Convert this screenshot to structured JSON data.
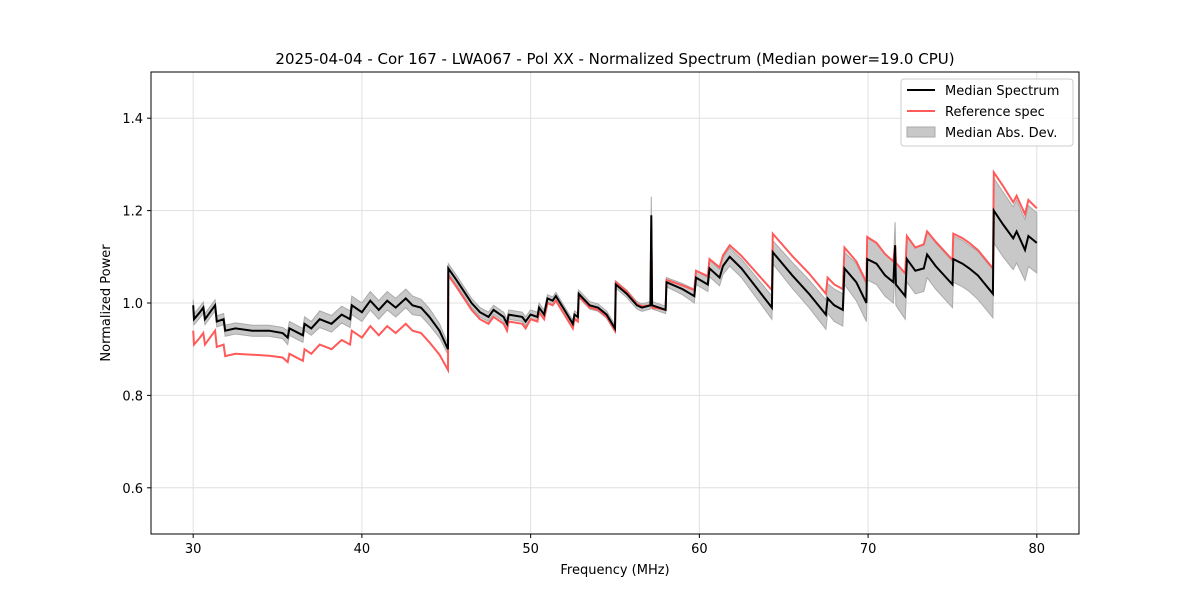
{
  "chart_data": {
    "type": "line",
    "title": "2025-04-04 - Cor 167 - LWA067 - Pol XX - Normalized Spectrum (Median power=19.0 CPU)",
    "xlabel": "Frequency (MHz)",
    "ylabel": "Normalized Power",
    "xlim": [
      27.5,
      82.5
    ],
    "ylim": [
      0.5,
      1.5
    ],
    "xticks": [
      30,
      40,
      50,
      60,
      70,
      80
    ],
    "xtick_labels": [
      "30",
      "40",
      "50",
      "60",
      "70",
      "80"
    ],
    "yticks": [
      0.6,
      0.8,
      1.0,
      1.2,
      1.4
    ],
    "ytick_labels": [
      "0.6",
      "0.8",
      "1.0",
      "1.2",
      "1.4"
    ],
    "grid": true,
    "legend_position": "top-right",
    "legend": [
      {
        "label": "Median Spectrum",
        "kind": "line",
        "color": "#000000"
      },
      {
        "label": "Reference spec",
        "kind": "line",
        "color": "#ff5a5a"
      },
      {
        "label": "Median Abs. Dev.",
        "kind": "band",
        "color": "#c8c8c8"
      }
    ],
    "columns": [
      "frequency_mhz",
      "median",
      "reference",
      "mad"
    ],
    "points": [
      [
        30.0,
        0.995,
        0.94,
        0.012
      ],
      [
        30.05,
        0.965,
        0.91,
        0.012
      ],
      [
        30.4,
        0.98,
        0.925,
        0.012
      ],
      [
        30.6,
        0.99,
        0.935,
        0.012
      ],
      [
        30.7,
        0.965,
        0.91,
        0.012
      ],
      [
        31.1,
        0.985,
        0.93,
        0.012
      ],
      [
        31.3,
        0.995,
        0.94,
        0.012
      ],
      [
        31.4,
        0.96,
        0.905,
        0.012
      ],
      [
        31.8,
        0.965,
        0.91,
        0.012
      ],
      [
        31.9,
        0.94,
        0.885,
        0.012
      ],
      [
        32.5,
        0.945,
        0.89,
        0.012
      ],
      [
        33.5,
        0.94,
        0.888,
        0.012
      ],
      [
        34.5,
        0.94,
        0.886,
        0.012
      ],
      [
        35.3,
        0.935,
        0.882,
        0.012
      ],
      [
        35.6,
        0.925,
        0.872,
        0.015
      ],
      [
        35.7,
        0.945,
        0.89,
        0.015
      ],
      [
        36.5,
        0.93,
        0.875,
        0.015
      ],
      [
        36.6,
        0.955,
        0.9,
        0.015
      ],
      [
        37.0,
        0.945,
        0.89,
        0.015
      ],
      [
        37.5,
        0.965,
        0.91,
        0.018
      ],
      [
        38.2,
        0.955,
        0.9,
        0.018
      ],
      [
        38.8,
        0.975,
        0.92,
        0.018
      ],
      [
        39.3,
        0.965,
        0.91,
        0.018
      ],
      [
        39.4,
        0.995,
        0.94,
        0.02
      ],
      [
        40.0,
        0.98,
        0.925,
        0.02
      ],
      [
        40.5,
        1.005,
        0.95,
        0.02
      ],
      [
        41.0,
        0.985,
        0.93,
        0.02
      ],
      [
        41.5,
        1.005,
        0.95,
        0.02
      ],
      [
        42.0,
        0.99,
        0.935,
        0.02
      ],
      [
        42.6,
        1.01,
        0.955,
        0.02
      ],
      [
        43.0,
        0.995,
        0.94,
        0.02
      ],
      [
        43.5,
        0.99,
        0.935,
        0.018
      ],
      [
        44.0,
        0.97,
        0.915,
        0.018
      ],
      [
        44.6,
        0.94,
        0.888,
        0.015
      ],
      [
        45.1,
        0.9,
        0.855,
        0.012
      ],
      [
        45.12,
        1.075,
        1.06,
        0.01
      ],
      [
        45.6,
        1.05,
        1.035,
        0.01
      ],
      [
        46.5,
        1.0,
        0.985,
        0.01
      ],
      [
        47.0,
        0.98,
        0.965,
        0.01
      ],
      [
        47.5,
        0.97,
        0.955,
        0.01
      ],
      [
        47.8,
        0.985,
        0.97,
        0.01
      ],
      [
        48.4,
        0.97,
        0.955,
        0.01
      ],
      [
        48.6,
        0.955,
        0.94,
        0.01
      ],
      [
        48.7,
        0.975,
        0.96,
        0.01
      ],
      [
        49.5,
        0.97,
        0.955,
        0.01
      ],
      [
        49.7,
        0.96,
        0.945,
        0.01
      ],
      [
        50.0,
        0.975,
        0.965,
        0.01
      ],
      [
        50.4,
        0.97,
        0.96,
        0.01
      ],
      [
        50.5,
        0.99,
        0.98,
        0.01
      ],
      [
        50.8,
        0.975,
        0.965,
        0.01
      ],
      [
        51.0,
        1.01,
        1.0,
        0.008
      ],
      [
        51.3,
        1.005,
        0.995,
        0.008
      ],
      [
        51.5,
        1.015,
        1.005,
        0.008
      ],
      [
        52.0,
        0.985,
        0.975,
        0.008
      ],
      [
        52.5,
        0.955,
        0.945,
        0.008
      ],
      [
        52.6,
        0.975,
        0.965,
        0.008
      ],
      [
        52.8,
        0.97,
        0.96,
        0.008
      ],
      [
        52.85,
        1.02,
        1.015,
        0.008
      ],
      [
        53.5,
        0.995,
        0.99,
        0.008
      ],
      [
        54.0,
        0.99,
        0.985,
        0.008
      ],
      [
        54.5,
        0.975,
        0.97,
        0.008
      ],
      [
        55.0,
        0.945,
        0.94,
        0.008
      ],
      [
        55.05,
        1.04,
        1.045,
        0.008
      ],
      [
        55.7,
        1.02,
        1.025,
        0.008
      ],
      [
        56.3,
        0.995,
        0.998,
        0.008
      ],
      [
        56.6,
        0.99,
        0.993,
        0.008
      ],
      [
        57.1,
        0.995,
        0.995,
        0.008
      ],
      [
        57.15,
        1.19,
        1.165,
        0.04
      ],
      [
        57.2,
        0.995,
        0.99,
        0.008
      ],
      [
        57.6,
        0.99,
        0.988,
        0.008
      ],
      [
        58.0,
        0.985,
        0.985,
        0.008
      ],
      [
        58.05,
        1.045,
        1.05,
        0.01
      ],
      [
        59.0,
        1.03,
        1.038,
        0.012
      ],
      [
        59.7,
        1.015,
        1.028,
        0.015
      ],
      [
        59.8,
        1.055,
        1.07,
        0.015
      ],
      [
        60.5,
        1.04,
        1.058,
        0.015
      ],
      [
        60.6,
        1.075,
        1.095,
        0.018
      ],
      [
        61.2,
        1.055,
        1.077,
        0.018
      ],
      [
        61.4,
        1.08,
        1.103,
        0.018
      ],
      [
        61.8,
        1.1,
        1.125,
        0.02
      ],
      [
        62.5,
        1.075,
        1.102,
        0.02
      ],
      [
        64.3,
        0.99,
        1.028,
        0.025
      ],
      [
        64.35,
        1.11,
        1.15,
        0.025
      ],
      [
        65.5,
        1.06,
        1.102,
        0.028
      ],
      [
        66.5,
        1.02,
        1.064,
        0.03
      ],
      [
        67.5,
        0.975,
        1.02,
        0.032
      ],
      [
        67.6,
        1.01,
        1.055,
        0.032
      ],
      [
        68.0,
        0.995,
        1.04,
        0.035
      ],
      [
        68.5,
        0.985,
        1.03,
        0.035
      ],
      [
        68.6,
        1.075,
        1.12,
        0.035
      ],
      [
        69.3,
        1.045,
        1.09,
        0.04
      ],
      [
        69.9,
        1.0,
        1.045,
        0.04
      ],
      [
        69.95,
        1.095,
        1.143,
        0.045
      ],
      [
        70.5,
        1.085,
        1.13,
        0.045
      ],
      [
        71.0,
        1.06,
        1.106,
        0.045
      ],
      [
        71.5,
        1.045,
        1.09,
        0.045
      ],
      [
        71.6,
        1.125,
        1.125,
        0.05
      ],
      [
        71.65,
        1.04,
        1.087,
        0.045
      ],
      [
        72.2,
        1.015,
        1.064,
        0.05
      ],
      [
        72.3,
        1.095,
        1.145,
        0.05
      ],
      [
        72.8,
        1.07,
        1.12,
        0.05
      ],
      [
        73.3,
        1.075,
        1.127,
        0.05
      ],
      [
        73.5,
        1.105,
        1.155,
        0.05
      ],
      [
        74.0,
        1.08,
        1.133,
        0.05
      ],
      [
        75.0,
        1.04,
        1.093,
        0.05
      ],
      [
        75.05,
        1.095,
        1.15,
        0.05
      ],
      [
        75.6,
        1.085,
        1.14,
        0.05
      ],
      [
        76.0,
        1.075,
        1.13,
        0.05
      ],
      [
        76.5,
        1.06,
        1.115,
        0.052
      ],
      [
        77.4,
        1.02,
        1.075,
        0.052
      ],
      [
        77.45,
        1.2,
        1.283,
        0.07
      ],
      [
        78.0,
        1.17,
        1.253,
        0.07
      ],
      [
        78.6,
        1.14,
        1.218,
        0.068
      ],
      [
        78.8,
        1.155,
        1.232,
        0.068
      ],
      [
        79.3,
        1.115,
        1.192,
        0.066
      ],
      [
        79.5,
        1.145,
        1.223,
        0.066
      ],
      [
        80.0,
        1.13,
        1.205,
        0.065
      ]
    ]
  }
}
